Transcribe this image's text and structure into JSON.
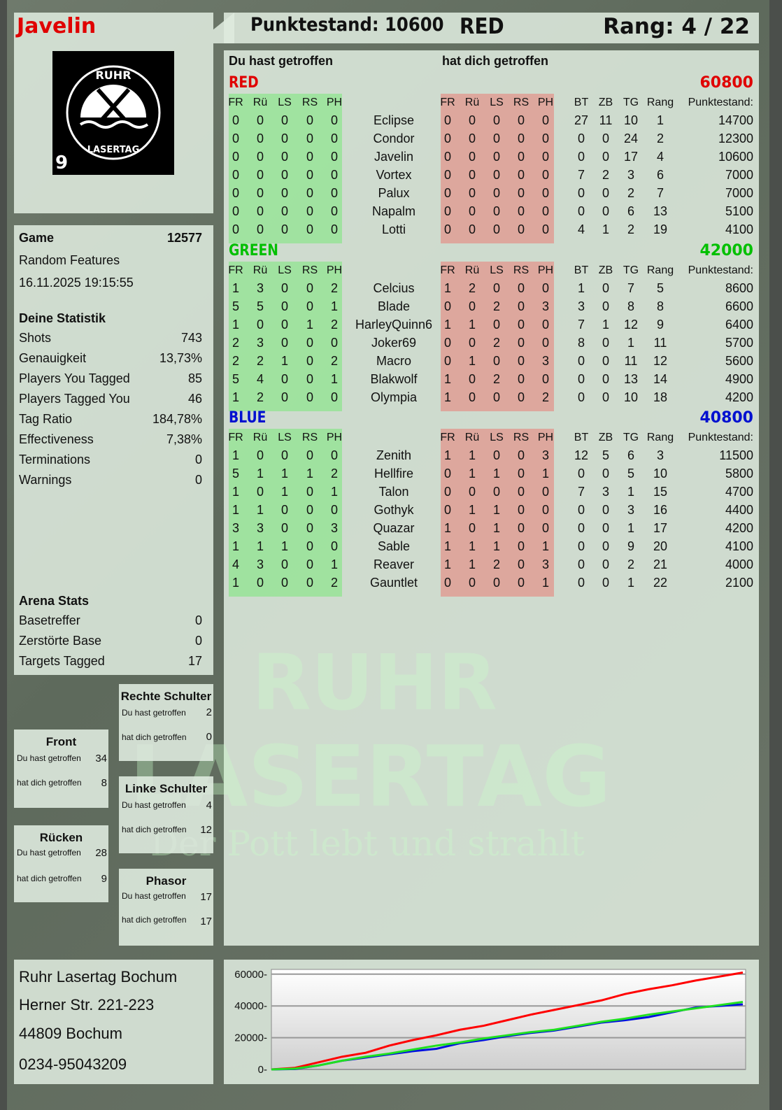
{
  "player": {
    "name": "Javelin",
    "logo_text": "RUHR LASERTAG",
    "logo_number": "9"
  },
  "header": {
    "score": "Punktestand: 10600",
    "team": "RED",
    "rank": "Rang: 4 / 22"
  },
  "main": {
    "you_hit_label": "Du hast getroffen",
    "hit_you_label": "hat dich getroffen",
    "columns_left": [
      "FR",
      "Rü",
      "LS",
      "RS",
      "PH"
    ],
    "columns_right": [
      "FR",
      "Rü",
      "LS",
      "RS",
      "PH"
    ],
    "columns_stats": [
      "BT",
      "ZB",
      "TG",
      "Rang",
      "Punktestand:"
    ],
    "teams": [
      {
        "name": "RED",
        "total": "60800",
        "color": "#e00000",
        "players": [
          {
            "name": "Eclipse",
            "you": [
              0,
              0,
              0,
              0,
              0
            ],
            "them": [
              0,
              0,
              0,
              0,
              0
            ],
            "stats": [
              27,
              11,
              10,
              1,
              14700
            ]
          },
          {
            "name": "Condor",
            "you": [
              0,
              0,
              0,
              0,
              0
            ],
            "them": [
              0,
              0,
              0,
              0,
              0
            ],
            "stats": [
              0,
              0,
              24,
              2,
              12300
            ]
          },
          {
            "name": "Javelin",
            "you": [
              0,
              0,
              0,
              0,
              0
            ],
            "them": [
              0,
              0,
              0,
              0,
              0
            ],
            "stats": [
              0,
              0,
              17,
              4,
              10600
            ]
          },
          {
            "name": "Vortex",
            "you": [
              0,
              0,
              0,
              0,
              0
            ],
            "them": [
              0,
              0,
              0,
              0,
              0
            ],
            "stats": [
              7,
              2,
              3,
              6,
              7000
            ]
          },
          {
            "name": "Palux",
            "you": [
              0,
              0,
              0,
              0,
              0
            ],
            "them": [
              0,
              0,
              0,
              0,
              0
            ],
            "stats": [
              0,
              0,
              2,
              7,
              7000
            ]
          },
          {
            "name": "Napalm",
            "you": [
              0,
              0,
              0,
              0,
              0
            ],
            "them": [
              0,
              0,
              0,
              0,
              0
            ],
            "stats": [
              0,
              0,
              6,
              13,
              5100
            ]
          },
          {
            "name": "Lotti",
            "you": [
              0,
              0,
              0,
              0,
              0
            ],
            "them": [
              0,
              0,
              0,
              0,
              0
            ],
            "stats": [
              4,
              1,
              2,
              19,
              4100
            ]
          }
        ]
      },
      {
        "name": "GREEN",
        "total": "42000",
        "color": "#00c000",
        "players": [
          {
            "name": "Celcius",
            "you": [
              1,
              3,
              0,
              0,
              2
            ],
            "them": [
              1,
              2,
              0,
              0,
              0
            ],
            "stats": [
              1,
              0,
              7,
              5,
              8600
            ]
          },
          {
            "name": "Blade",
            "you": [
              5,
              5,
              0,
              0,
              1
            ],
            "them": [
              0,
              0,
              2,
              0,
              3
            ],
            "stats": [
              3,
              0,
              8,
              8,
              6600
            ]
          },
          {
            "name": "HarleyQuinn6",
            "you": [
              1,
              0,
              0,
              1,
              2
            ],
            "them": [
              1,
              1,
              0,
              0,
              0
            ],
            "stats": [
              7,
              1,
              12,
              9,
              6400
            ]
          },
          {
            "name": "Joker69",
            "you": [
              2,
              3,
              0,
              0,
              0
            ],
            "them": [
              0,
              0,
              2,
              0,
              0
            ],
            "stats": [
              8,
              0,
              1,
              11,
              5700
            ]
          },
          {
            "name": "Macro",
            "you": [
              2,
              2,
              1,
              0,
              2
            ],
            "them": [
              0,
              1,
              0,
              0,
              3
            ],
            "stats": [
              0,
              0,
              11,
              12,
              5600
            ]
          },
          {
            "name": "Blakwolf",
            "you": [
              5,
              4,
              0,
              0,
              1
            ],
            "them": [
              1,
              0,
              2,
              0,
              0
            ],
            "stats": [
              0,
              0,
              13,
              14,
              4900
            ]
          },
          {
            "name": "Olympia",
            "you": [
              1,
              2,
              0,
              0,
              0
            ],
            "them": [
              1,
              0,
              0,
              0,
              2
            ],
            "stats": [
              0,
              0,
              10,
              18,
              4200
            ]
          }
        ]
      },
      {
        "name": "BLUE",
        "total": "40800",
        "color": "#0010d0",
        "players": [
          {
            "name": "Zenith",
            "you": [
              1,
              0,
              0,
              0,
              0
            ],
            "them": [
              1,
              1,
              0,
              0,
              3
            ],
            "stats": [
              12,
              5,
              6,
              3,
              11500
            ]
          },
          {
            "name": "Hellfire",
            "you": [
              5,
              1,
              1,
              1,
              2
            ],
            "them": [
              0,
              1,
              1,
              0,
              1
            ],
            "stats": [
              0,
              0,
              5,
              10,
              5800
            ]
          },
          {
            "name": "Talon",
            "you": [
              1,
              0,
              1,
              0,
              1
            ],
            "them": [
              0,
              0,
              0,
              0,
              0
            ],
            "stats": [
              7,
              3,
              1,
              15,
              4700
            ]
          },
          {
            "name": "Gothyk",
            "you": [
              1,
              1,
              0,
              0,
              0
            ],
            "them": [
              0,
              1,
              1,
              0,
              0
            ],
            "stats": [
              0,
              0,
              3,
              16,
              4400
            ]
          },
          {
            "name": "Quazar",
            "you": [
              3,
              3,
              0,
              0,
              3
            ],
            "them": [
              1,
              0,
              1,
              0,
              0
            ],
            "stats": [
              0,
              0,
              1,
              17,
              4200
            ]
          },
          {
            "name": "Sable",
            "you": [
              1,
              1,
              1,
              0,
              0
            ],
            "them": [
              1,
              1,
              1,
              0,
              1
            ],
            "stats": [
              0,
              0,
              9,
              20,
              4100
            ]
          },
          {
            "name": "Reaver",
            "you": [
              4,
              3,
              0,
              0,
              1
            ],
            "them": [
              1,
              1,
              2,
              0,
              3
            ],
            "stats": [
              0,
              0,
              2,
              21,
              4000
            ]
          },
          {
            "name": "Gauntlet",
            "you": [
              1,
              0,
              0,
              0,
              2
            ],
            "them": [
              0,
              0,
              0,
              0,
              1
            ],
            "stats": [
              0,
              0,
              1,
              22,
              2100
            ]
          }
        ]
      }
    ]
  },
  "game": {
    "label": "Game",
    "id": "12577",
    "mode": "Random Features",
    "datetime": "16.11.2025 19:15:55"
  },
  "stats": {
    "title": "Deine Statistik",
    "rows": [
      {
        "label": "Shots",
        "value": "743"
      },
      {
        "label": "Genauigkeit",
        "value": "13,73%"
      },
      {
        "label": "Players You Tagged",
        "value": "85"
      },
      {
        "label": "Players Tagged You",
        "value": "46"
      },
      {
        "label": "Tag Ratio",
        "value": "184,78%"
      },
      {
        "label": "Effectiveness",
        "value": "7,38%"
      },
      {
        "label": "Terminations",
        "value": "0"
      },
      {
        "label": "Warnings",
        "value": "0"
      }
    ]
  },
  "arena": {
    "title": "Arena Stats",
    "rows": [
      {
        "label": "Basetreffer",
        "value": "0"
      },
      {
        "label": "Zerstörte Base",
        "value": "0"
      },
      {
        "label": "Targets Tagged",
        "value": "17"
      }
    ]
  },
  "zones": {
    "you_label": "Du hast getroffen",
    "them_label": "hat dich getroffen",
    "rechte": {
      "title": "Rechte Schulter",
      "you": "2",
      "them": "0"
    },
    "front": {
      "title": "Front",
      "you": "34",
      "them": "8"
    },
    "linke": {
      "title": "Linke Schulter",
      "you": "4",
      "them": "12"
    },
    "ruecken": {
      "title": "Rücken",
      "you": "28",
      "them": "9"
    },
    "phasor": {
      "title": "Phasor",
      "you": "17",
      "them": "17"
    }
  },
  "address": {
    "line1": "Ruhr Lasertag Bochum",
    "line2": "Herner Str. 221-223",
    "line3": "44809 Bochum",
    "line4": "0234-95043209"
  },
  "watermark": {
    "line1": "RUHR",
    "line2": "LASERTAG",
    "line3": "Der Pott lebt und strahlt"
  },
  "chart_data": {
    "type": "line",
    "ylim": [
      0,
      63000
    ],
    "yticks": [
      0,
      20000,
      40000,
      60000
    ],
    "ytick_labels": [
      "0",
      "20000",
      "40000",
      "60000"
    ],
    "grid": true,
    "x": [
      0,
      1,
      2,
      3,
      4,
      5,
      6,
      7,
      8,
      9,
      10,
      11,
      12,
      13,
      14,
      15,
      16,
      17,
      18,
      19,
      20
    ],
    "series": [
      {
        "color": "#ff0000",
        "values": [
          0,
          1000,
          4500,
          8000,
          10500,
          15000,
          18500,
          21500,
          25000,
          27500,
          31000,
          34500,
          37500,
          40500,
          43500,
          47500,
          50500,
          53000,
          56000,
          58500,
          61000
        ]
      },
      {
        "color": "#0010e0",
        "values": [
          0,
          300,
          2500,
          5500,
          7500,
          9500,
          11500,
          13000,
          16500,
          18500,
          21000,
          23000,
          24500,
          27000,
          29500,
          31000,
          33000,
          36000,
          39000,
          40000,
          41000
        ]
      },
      {
        "color": "#20e020",
        "values": [
          0,
          500,
          2500,
          5500,
          8000,
          10000,
          12500,
          15000,
          17000,
          19500,
          21500,
          23500,
          25000,
          27500,
          30000,
          32000,
          34500,
          36500,
          38500,
          40500,
          42500
        ]
      }
    ]
  }
}
